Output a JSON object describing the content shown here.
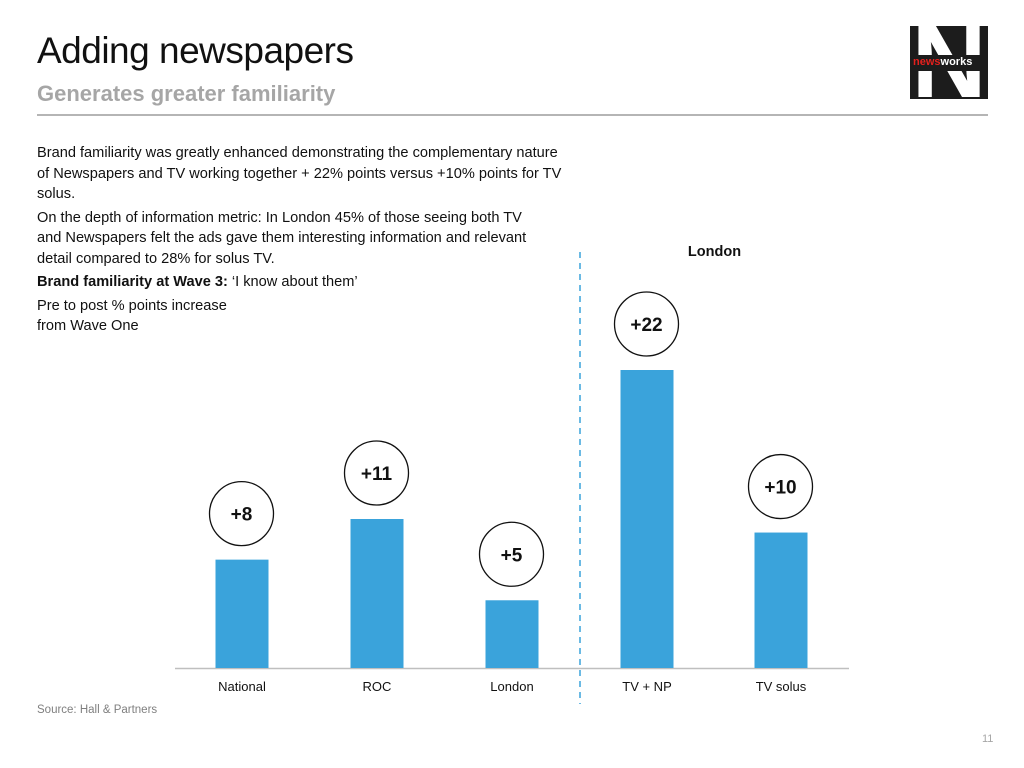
{
  "header": {
    "title": "Adding newspapers",
    "subtitle": "Generates greater familiarity"
  },
  "logo": {
    "part1": "news",
    "part2": "works"
  },
  "body": {
    "paragraph1": "Brand familiarity was greatly enhanced demonstrating the complementary nature of Newspapers and TV working together + 22% points versus +10% points for TV solus.",
    "paragraph2": "On the depth of information metric: In London 45% of those seeing both TV and Newspapers felt the ads gave them interesting information and relevant detail compared to 28% for solus TV.",
    "heading_bold": "Brand familiarity at Wave 3:",
    "heading_rest": " ‘I know about them’",
    "note_line1": "Pre to post % points increase",
    "note_line2": "from Wave One"
  },
  "chart_data": {
    "type": "bar",
    "categories": [
      "National",
      "ROC",
      "London",
      "TV + NP",
      "TV solus"
    ],
    "values": [
      8,
      11,
      5,
      22,
      10
    ],
    "data_labels": [
      "+8",
      "+11",
      "+5",
      "+22",
      "+10"
    ],
    "group_label": "London",
    "group_start_index": 3,
    "ylim": [
      0,
      25
    ],
    "grid": false,
    "bar_color": "#3aa3db",
    "divider_color": "#3aa3db"
  },
  "footer": {
    "source": "Source: Hall & Partners",
    "page_number": "11"
  }
}
